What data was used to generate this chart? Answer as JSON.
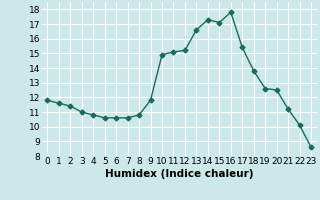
{
  "x": [
    0,
    1,
    2,
    3,
    4,
    5,
    6,
    7,
    8,
    9,
    10,
    11,
    12,
    13,
    14,
    15,
    16,
    17,
    18,
    19,
    20,
    21,
    22,
    23
  ],
  "y": [
    11.8,
    11.6,
    11.4,
    11.0,
    10.8,
    10.6,
    10.6,
    10.6,
    10.8,
    11.8,
    14.9,
    15.1,
    15.2,
    16.6,
    17.3,
    17.1,
    17.8,
    15.4,
    13.8,
    12.6,
    12.5,
    11.2,
    10.1,
    8.6
  ],
  "line_color": "#1a6b5a",
  "marker": "D",
  "marker_size": 2.5,
  "xlabel": "Humidex (Indice chaleur)",
  "ylabel": "",
  "xlim": [
    -0.5,
    23.5
  ],
  "ylim": [
    8,
    18.5
  ],
  "yticks": [
    8,
    9,
    10,
    11,
    12,
    13,
    14,
    15,
    16,
    17,
    18
  ],
  "xticks": [
    0,
    1,
    2,
    3,
    4,
    5,
    6,
    7,
    8,
    9,
    10,
    11,
    12,
    13,
    14,
    15,
    16,
    17,
    18,
    19,
    20,
    21,
    22,
    23
  ],
  "xtick_labels": [
    "0",
    "1",
    "2",
    "3",
    "4",
    "5",
    "6",
    "7",
    "8",
    "9",
    "10",
    "11",
    "12",
    "13",
    "14",
    "15",
    "16",
    "17",
    "18",
    "19",
    "20",
    "21",
    "22",
    "23"
  ],
  "bg_color": "#cce8e8",
  "grid_color": "#ffffff",
  "tick_fontsize": 6.5,
  "xlabel_fontsize": 7.5,
  "line_width": 1.0
}
